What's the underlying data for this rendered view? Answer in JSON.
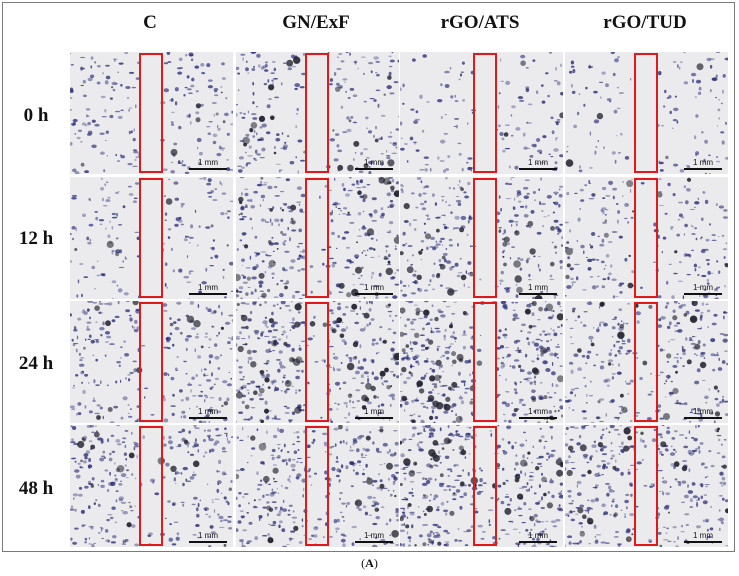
{
  "columns": [
    "C",
    "GN/ExF",
    "rGO/ATS",
    "rGO/TUD"
  ],
  "rows": [
    "0 h",
    "12 h",
    "24 h",
    "48 h"
  ],
  "scale_bar_label": "1 mm",
  "figure_label": {
    "open": "(",
    "letter": "A",
    "close": ")"
  },
  "colors": {
    "cell_stain": "#2c2f7a",
    "dark_cluster": "#222230",
    "background": "#ebebed",
    "wound_marker": "#e01a1a"
  }
}
